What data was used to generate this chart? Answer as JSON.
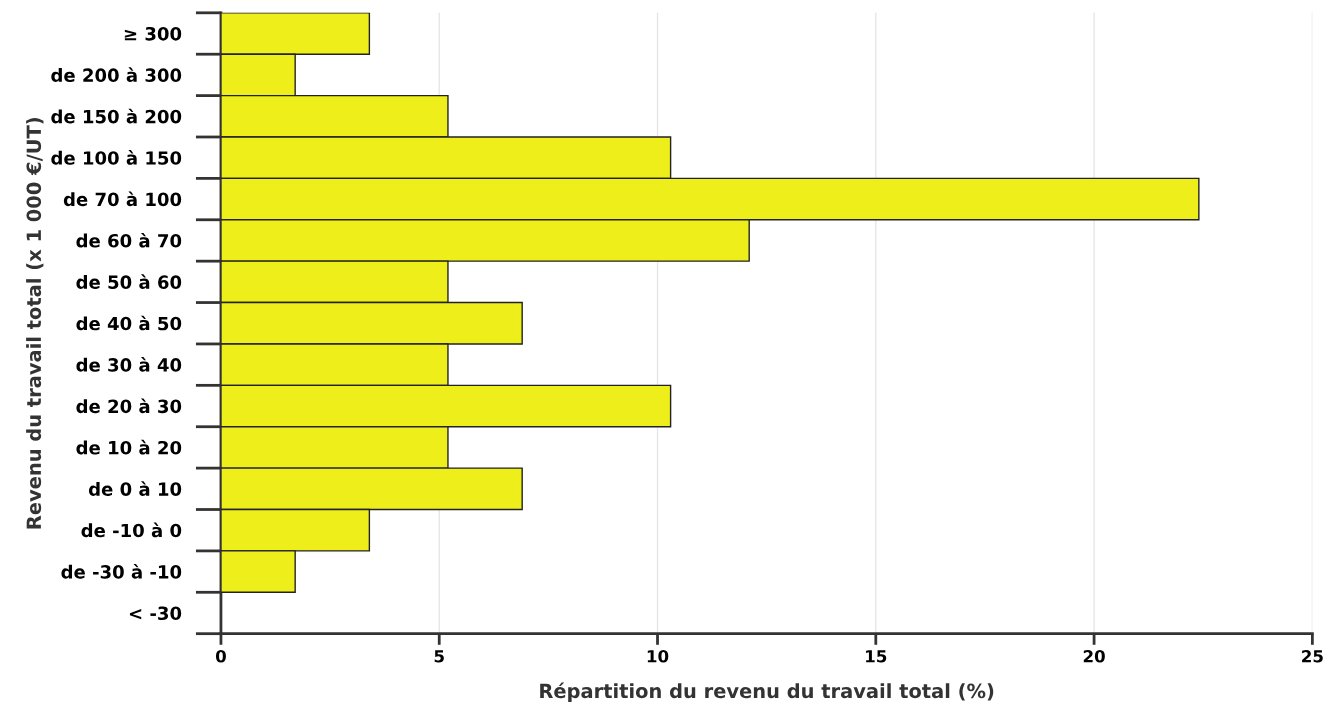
{
  "chart_data": {
    "type": "bar",
    "orientation": "horizontal",
    "xlabel": "Répartition du revenu du travail total (%)",
    "ylabel": "Revenu du travail total (x 1 000 €/UT)",
    "categories": [
      "≥ 300",
      "de 200 à 300",
      "de 150 à 200",
      "de 100 à 150",
      "de 70 à 100",
      "de 60 à 70",
      "de 50 à 60",
      "de 40 à 50",
      "de 30 à 40",
      "de 20 à 30",
      "de 10 à 20",
      "de 0 à 10",
      "de -10 à 0",
      "de -30 à -10",
      "< -30"
    ],
    "values": [
      3.4,
      1.7,
      5.2,
      10.3,
      22.4,
      12.1,
      5.2,
      6.9,
      5.2,
      10.3,
      5.2,
      6.9,
      3.4,
      1.7,
      0
    ],
    "color": "#eeee1a",
    "xlim": [
      0,
      25
    ],
    "xticks": [
      0,
      5,
      10,
      15,
      20,
      25
    ],
    "grid": "x",
    "legend": false
  }
}
